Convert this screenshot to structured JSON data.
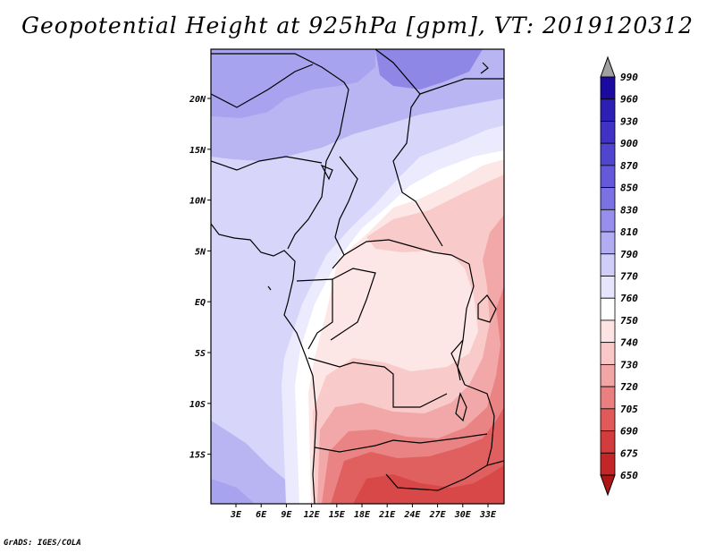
{
  "title": "Geopotential Height at 925hPa [gpm], VT: 2019120312",
  "credit": "GrADS: IGES/COLA",
  "lat_labels": [
    "20N",
    "15N",
    "10N",
    "5N",
    "EQ",
    "5S",
    "10S",
    "15S"
  ],
  "lon_labels": [
    "3E",
    "6E",
    "9E",
    "12E",
    "15E",
    "18E",
    "21E",
    "24E",
    "27E",
    "30E",
    "33E"
  ],
  "colorbar": {
    "levels": [
      "990",
      "960",
      "930",
      "900",
      "870",
      "850",
      "830",
      "810",
      "790",
      "770",
      "760",
      "750",
      "740",
      "730",
      "720",
      "705",
      "690",
      "675",
      "650"
    ],
    "colors": [
      "#1a0aa0",
      "#2c1fb4",
      "#3f32c4",
      "#5045cf",
      "#6459db",
      "#7a71e3",
      "#958eec",
      "#b2adf3",
      "#d0cef8",
      "#e6e5fb",
      "#ffffff",
      "#fde4e4",
      "#f9c7c7",
      "#f2a5a5",
      "#ea7f7f",
      "#e05a5a",
      "#d33c3c",
      "#c32626",
      "#ad1616"
    ],
    "top_arrow_color": "#a0a0a0"
  },
  "map": {
    "region": "Central and Southern Africa",
    "field": "Geopotential Height 925hPa",
    "lon_range": [
      0,
      35
    ],
    "lat_range": [
      -20,
      24
    ]
  }
}
